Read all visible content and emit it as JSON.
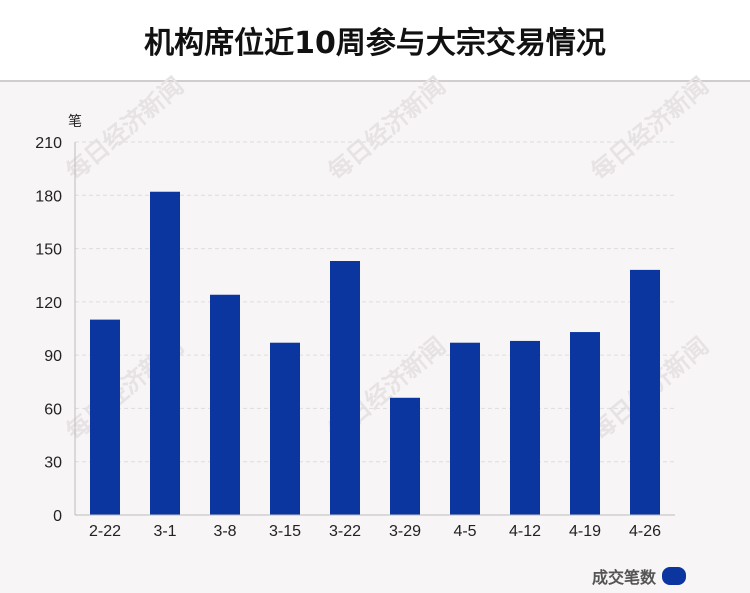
{
  "header": {
    "title": "机构席位近10周参与大宗交易情况"
  },
  "watermark": "每日经济新闻",
  "colors": {
    "bar": "#0b36a0",
    "grid": "#dddddd",
    "axis": "#bbbbbb"
  },
  "chart_data": {
    "type": "bar",
    "title": "机构席位近10周参与大宗交易情况",
    "ylabel": "笔",
    "xlabel": "",
    "categories": [
      "2-22",
      "3-1",
      "3-8",
      "3-15",
      "3-22",
      "3-29",
      "4-5",
      "4-12",
      "4-19",
      "4-26"
    ],
    "series": [
      {
        "name": "成交笔数",
        "values": [
          110,
          182,
          124,
          97,
          143,
          66,
          97,
          98,
          103,
          138
        ]
      }
    ],
    "ylim": [
      0,
      210
    ],
    "yticks": [
      0,
      30,
      60,
      90,
      120,
      150,
      180,
      210
    ],
    "grid": true,
    "legend": "bottom-right"
  }
}
